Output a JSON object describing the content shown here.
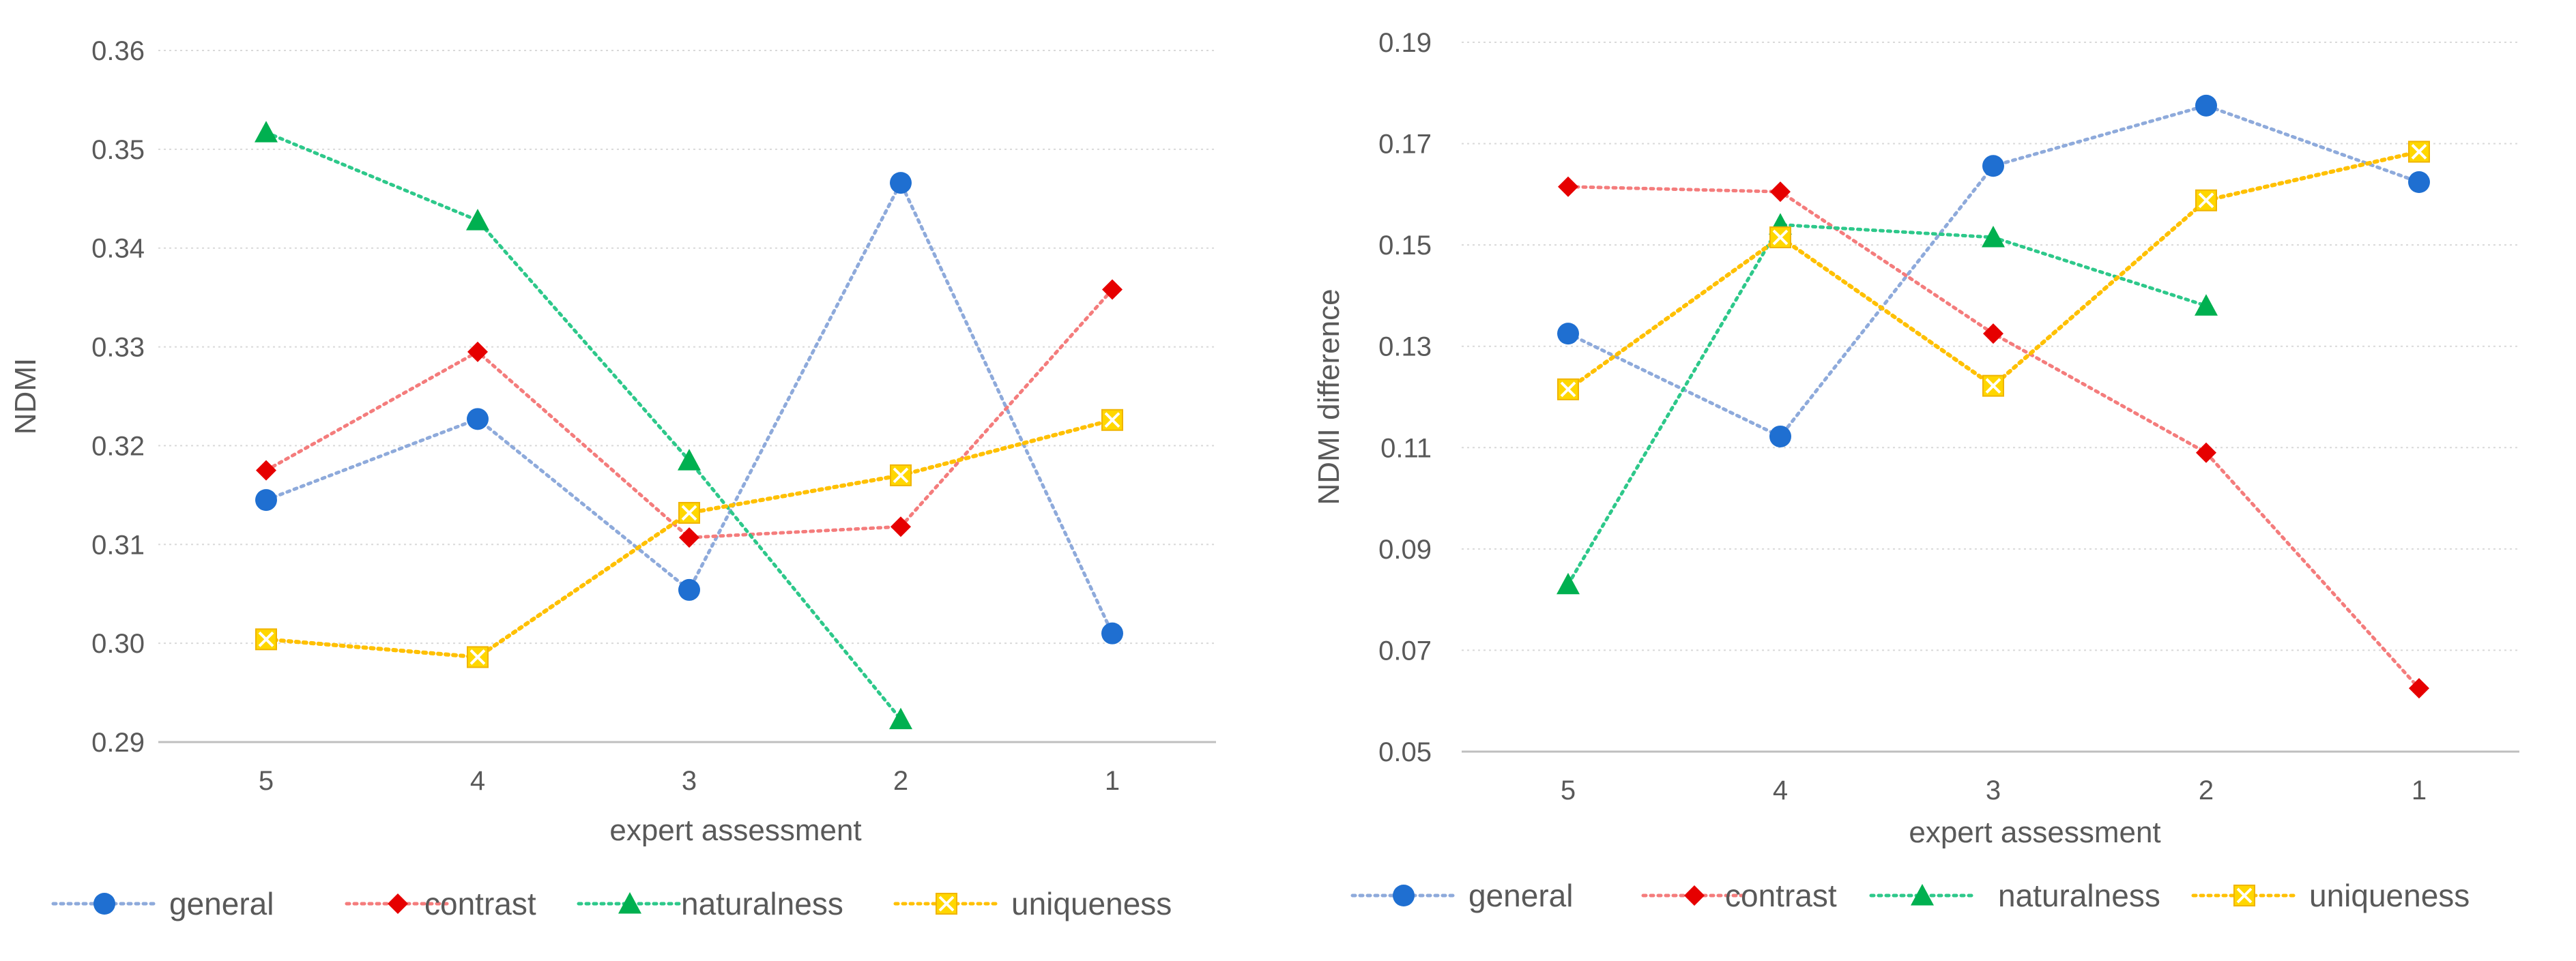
{
  "chart_data": [
    {
      "type": "line",
      "title": "",
      "xlabel": "expert assessment",
      "ylabel": "NDMI",
      "categories": [
        "5",
        "4",
        "3",
        "2",
        "1"
      ],
      "ylim": [
        0.29,
        0.36
      ],
      "yticks": [
        "0.29",
        "0.30",
        "0.31",
        "0.32",
        "0.33",
        "0.34",
        "0.35",
        "0.36"
      ],
      "yticks_values": [
        0.29,
        0.3,
        0.31,
        0.32,
        0.33,
        0.34,
        0.35,
        0.36
      ],
      "grid": "horizontal-dotted",
      "legend_position": "bottom",
      "series": [
        {
          "name": "general",
          "color": "#1f6fd1",
          "line_color": "#8eaadb",
          "marker": "circle",
          "values": [
            0.3145,
            0.3227,
            0.3054,
            0.3466,
            0.301
          ]
        },
        {
          "name": "contrast",
          "color": "#e60000",
          "line_color": "#f47c7c",
          "marker": "diamond",
          "values": [
            0.3175,
            0.3295,
            0.3107,
            0.3118,
            0.3358
          ]
        },
        {
          "name": "naturalness",
          "color": "#00b050",
          "line_color": "#2dc88a",
          "marker": "triangle",
          "values": [
            0.3517,
            0.3428,
            0.3185,
            0.2923,
            null
          ]
        },
        {
          "name": "uniqueness",
          "color": "#ffd700",
          "line_color": "#ffc000",
          "marker": "square-x",
          "values": [
            0.3004,
            0.2986,
            0.3132,
            0.317,
            0.3226
          ]
        }
      ]
    },
    {
      "type": "line",
      "title": "",
      "xlabel": "expert assessment",
      "ylabel": "NDMI difference",
      "categories": [
        "5",
        "4",
        "3",
        "2",
        "1"
      ],
      "ylim": [
        0.05,
        0.19
      ],
      "yticks": [
        "0.05",
        "0.07",
        "0.09",
        "0.11",
        "0.13",
        "0.15",
        "0.17",
        "0.19"
      ],
      "yticks_values": [
        0.05,
        0.07,
        0.09,
        0.11,
        0.13,
        0.15,
        0.17,
        0.19
      ],
      "grid": "horizontal-dotted",
      "legend_position": "bottom",
      "series": [
        {
          "name": "general",
          "color": "#1f6fd1",
          "line_color": "#8eaadb",
          "marker": "circle",
          "values": [
            0.1325,
            0.1122,
            0.1656,
            0.1775,
            0.1624
          ]
        },
        {
          "name": "contrast",
          "color": "#e60000",
          "line_color": "#f47c7c",
          "marker": "diamond",
          "values": [
            0.1615,
            0.1605,
            0.1325,
            0.109,
            0.0625
          ]
        },
        {
          "name": "naturalness",
          "color": "#00b050",
          "line_color": "#2dc88a",
          "marker": "triangle",
          "values": [
            0.083,
            0.154,
            0.1515,
            0.138,
            null
          ]
        },
        {
          "name": "uniqueness",
          "color": "#ffd700",
          "line_color": "#ffc000",
          "marker": "square-x",
          "values": [
            0.1215,
            0.1515,
            0.1222,
            0.1588,
            0.1684
          ]
        }
      ]
    }
  ]
}
